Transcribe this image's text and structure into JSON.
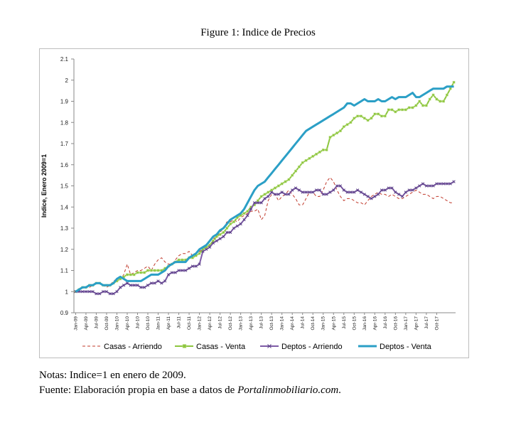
{
  "figure": {
    "caption": "Figure 1: Indice de Precios",
    "notes": "Notas: Indice=1 en enero de 2009.",
    "source_prefix": "Fuente: Elaboración propia en base a datos de ",
    "source_italic": "Portalinmobiliario.com",
    "source_suffix": "."
  },
  "chart_data": {
    "type": "line",
    "title": "",
    "xlabel": "",
    "ylabel": "Indice, Enero 2009=1",
    "ylim": [
      0.9,
      2.1
    ],
    "yticks": [
      "0.9",
      "1",
      "1.1",
      "1.2",
      "1.3",
      "1.4",
      "1.5",
      "1.6",
      "1.7",
      "1.8",
      "1.9",
      "2",
      "2.1"
    ],
    "x_start": "Jan-09",
    "x_end": "Dec-17",
    "xtick_labels": [
      "Jan-09",
      "Apr-09",
      "Jul-09",
      "Oct-09",
      "Jan-10",
      "Apr-10",
      "Jul-10",
      "Oct-10",
      "Jan-11",
      "Apr-11",
      "Jul-11",
      "Oct-11",
      "Jan-12",
      "Apr-12",
      "Jul-12",
      "Oct-12",
      "Jan-13",
      "Apr-13",
      "Jul-13",
      "Oct-13",
      "Jan-14",
      "Apr-14",
      "Jul-14",
      "Oct-14",
      "Jan-15",
      "Apr-15",
      "Jul-15",
      "Oct-15",
      "Jan-16",
      "Apr-16",
      "Jul-16",
      "Oct-16",
      "Jan-17",
      "Apr-17",
      "Jul-17",
      "Oct-17"
    ],
    "grid": false,
    "legend": "bottom",
    "series": [
      {
        "name": "Casas - Arriendo",
        "color": "#c0392b",
        "style": "dashed",
        "values": [
          1.0,
          1.01,
          1.02,
          1.02,
          1.02,
          1.03,
          1.04,
          1.04,
          1.03,
          1.02,
          1.03,
          1.05,
          1.06,
          1.06,
          1.08,
          1.13,
          1.08,
          1.09,
          1.1,
          1.1,
          1.11,
          1.12,
          1.1,
          1.13,
          1.15,
          1.16,
          1.14,
          1.13,
          1.13,
          1.15,
          1.17,
          1.18,
          1.18,
          1.19,
          1.17,
          1.18,
          1.19,
          1.2,
          1.22,
          1.24,
          1.25,
          1.26,
          1.28,
          1.3,
          1.33,
          1.33,
          1.34,
          1.33,
          1.35,
          1.36,
          1.37,
          1.38,
          1.38,
          1.39,
          1.34,
          1.36,
          1.43,
          1.46,
          1.46,
          1.43,
          1.45,
          1.46,
          1.48,
          1.46,
          1.44,
          1.41,
          1.41,
          1.44,
          1.47,
          1.47,
          1.45,
          1.45,
          1.48,
          1.52,
          1.54,
          1.52,
          1.48,
          1.45,
          1.43,
          1.44,
          1.44,
          1.43,
          1.42,
          1.42,
          1.41,
          1.43,
          1.45,
          1.46,
          1.47,
          1.46,
          1.46,
          1.45,
          1.46,
          1.45,
          1.44,
          1.44,
          1.45,
          1.46,
          1.47,
          1.48,
          1.47,
          1.46,
          1.46,
          1.45,
          1.44,
          1.45,
          1.45,
          1.44,
          1.43,
          1.42,
          1.42
        ]
      },
      {
        "name": "Casas - Venta",
        "color": "#8dc63f",
        "style": "solid-square-markers",
        "values": [
          1.0,
          1.01,
          1.02,
          1.02,
          1.03,
          1.03,
          1.04,
          1.04,
          1.03,
          1.03,
          1.03,
          1.04,
          1.05,
          1.06,
          1.07,
          1.08,
          1.08,
          1.08,
          1.09,
          1.09,
          1.09,
          1.1,
          1.1,
          1.1,
          1.1,
          1.1,
          1.11,
          1.12,
          1.13,
          1.14,
          1.15,
          1.15,
          1.15,
          1.16,
          1.16,
          1.17,
          1.18,
          1.2,
          1.21,
          1.22,
          1.24,
          1.26,
          1.27,
          1.28,
          1.3,
          1.32,
          1.33,
          1.35,
          1.36,
          1.37,
          1.38,
          1.4,
          1.41,
          1.43,
          1.45,
          1.46,
          1.47,
          1.48,
          1.49,
          1.5,
          1.51,
          1.52,
          1.53,
          1.55,
          1.57,
          1.59,
          1.61,
          1.62,
          1.63,
          1.64,
          1.65,
          1.66,
          1.67,
          1.67,
          1.73,
          1.74,
          1.75,
          1.76,
          1.78,
          1.79,
          1.8,
          1.82,
          1.83,
          1.83,
          1.82,
          1.81,
          1.82,
          1.84,
          1.84,
          1.83,
          1.83,
          1.86,
          1.86,
          1.85,
          1.86,
          1.86,
          1.86,
          1.87,
          1.87,
          1.88,
          1.9,
          1.88,
          1.88,
          1.91,
          1.93,
          1.91,
          1.9,
          1.9,
          1.93,
          1.96,
          1.99
        ]
      },
      {
        "name": "Deptos - Arriendo",
        "color": "#7d5ba6",
        "style": "solid-x-markers",
        "values": [
          1.0,
          1.0,
          1.0,
          1.0,
          1.0,
          1.0,
          0.99,
          0.99,
          1.0,
          1.0,
          0.99,
          0.99,
          1.0,
          1.02,
          1.03,
          1.04,
          1.03,
          1.03,
          1.03,
          1.02,
          1.02,
          1.03,
          1.04,
          1.04,
          1.05,
          1.04,
          1.05,
          1.08,
          1.09,
          1.09,
          1.1,
          1.1,
          1.1,
          1.11,
          1.12,
          1.12,
          1.13,
          1.19,
          1.2,
          1.21,
          1.23,
          1.24,
          1.25,
          1.26,
          1.28,
          1.28,
          1.3,
          1.31,
          1.32,
          1.34,
          1.36,
          1.39,
          1.42,
          1.42,
          1.42,
          1.44,
          1.45,
          1.47,
          1.46,
          1.46,
          1.47,
          1.46,
          1.46,
          1.48,
          1.49,
          1.48,
          1.47,
          1.47,
          1.47,
          1.47,
          1.48,
          1.48,
          1.46,
          1.46,
          1.47,
          1.48,
          1.5,
          1.5,
          1.48,
          1.47,
          1.47,
          1.47,
          1.48,
          1.47,
          1.46,
          1.45,
          1.44,
          1.45,
          1.46,
          1.48,
          1.48,
          1.49,
          1.49,
          1.47,
          1.46,
          1.45,
          1.47,
          1.48,
          1.48,
          1.49,
          1.5,
          1.51,
          1.5,
          1.5,
          1.5,
          1.51,
          1.51,
          1.51,
          1.51,
          1.51,
          1.52
        ]
      },
      {
        "name": "Deptos - Venta",
        "color": "#2b9fc6",
        "style": "solid-thick",
        "values": [
          1.0,
          1.01,
          1.02,
          1.02,
          1.03,
          1.03,
          1.04,
          1.04,
          1.03,
          1.03,
          1.03,
          1.04,
          1.06,
          1.07,
          1.06,
          1.05,
          1.05,
          1.05,
          1.05,
          1.05,
          1.06,
          1.07,
          1.08,
          1.08,
          1.08,
          1.09,
          1.1,
          1.12,
          1.13,
          1.14,
          1.14,
          1.14,
          1.14,
          1.16,
          1.17,
          1.18,
          1.2,
          1.21,
          1.22,
          1.24,
          1.26,
          1.27,
          1.29,
          1.3,
          1.32,
          1.34,
          1.35,
          1.36,
          1.37,
          1.39,
          1.42,
          1.45,
          1.48,
          1.5,
          1.51,
          1.52,
          1.54,
          1.56,
          1.58,
          1.6,
          1.62,
          1.64,
          1.66,
          1.68,
          1.7,
          1.72,
          1.74,
          1.76,
          1.77,
          1.78,
          1.79,
          1.8,
          1.81,
          1.82,
          1.83,
          1.84,
          1.85,
          1.86,
          1.87,
          1.89,
          1.89,
          1.88,
          1.89,
          1.9,
          1.91,
          1.9,
          1.9,
          1.9,
          1.91,
          1.9,
          1.9,
          1.91,
          1.92,
          1.91,
          1.92,
          1.92,
          1.92,
          1.93,
          1.94,
          1.92,
          1.92,
          1.93,
          1.94,
          1.95,
          1.96,
          1.96,
          1.96,
          1.96,
          1.97,
          1.97,
          1.97
        ]
      }
    ]
  }
}
